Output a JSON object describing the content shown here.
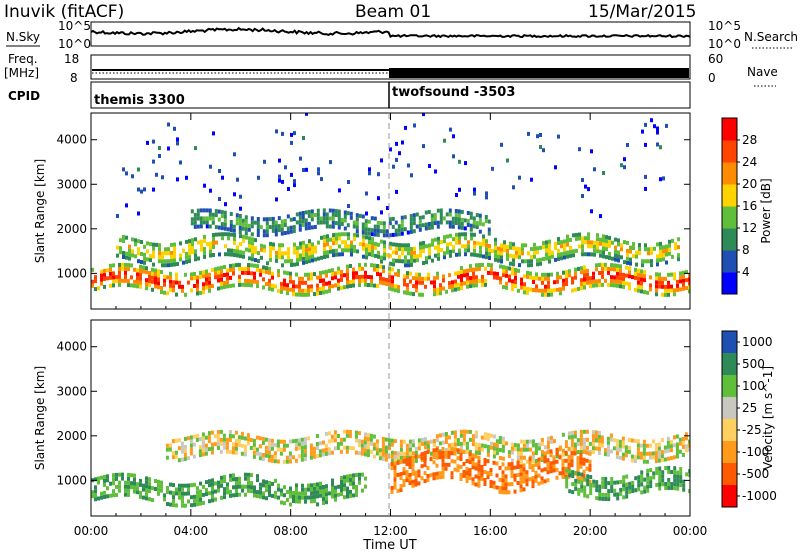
{
  "header": {
    "station": "Inuvik (fitACF)",
    "beam": "Beam 01",
    "date": "15/Mar/2015"
  },
  "panels": {
    "sky": {
      "left_label": "N.Sky",
      "right_label": "N.Search",
      "left_ticks": [
        "10^5",
        "10^0"
      ],
      "right_ticks": [
        "10^5",
        "10^0"
      ]
    },
    "freq": {
      "label_line1": "Freq.",
      "label_line2": "[MHz]",
      "left_ticks": [
        "18",
        "8"
      ],
      "right_ticks": [
        "60",
        "0"
      ],
      "right_label": "Nave"
    },
    "cpid": {
      "label": "CPID",
      "segments": [
        {
          "name": "themis 3300",
          "start_hour": 0
        },
        {
          "name": "twofsound -3503",
          "start_hour": 12
        }
      ]
    }
  },
  "colors": {
    "power": [
      "#0000ff",
      "#1f4fb3",
      "#2e8b57",
      "#5fbf3a",
      "#ffd300",
      "#ff8c00",
      "#ff4500",
      "#ff0000"
    ],
    "velocity": [
      "#ff0000",
      "#ff5a00",
      "#ff9a1a",
      "#ffd060",
      "#c8c8c0",
      "#5fbf3a",
      "#2e8b57",
      "#1f4fb3"
    ],
    "axis": "#000000",
    "noon_line": "#999999"
  },
  "chart_data": [
    {
      "type": "heatmap",
      "title": "Power",
      "ylabel": "Slant Range [km]",
      "ylim": [
        200,
        4600
      ],
      "yticks": [
        "1000",
        "2000",
        "3000",
        "4000"
      ],
      "xlim": [
        0,
        24
      ],
      "colorbar": {
        "label": "Power [dB]",
        "ticks": [
          "4",
          "8",
          "12",
          "16",
          "20",
          "24",
          "28"
        ],
        "range": [
          0,
          32
        ]
      },
      "bands": [
        {
          "name": "E-region echoes",
          "x_start": 0,
          "x_end": 24,
          "range_center": 900,
          "range_width": 450,
          "power": 28
        },
        {
          "name": "F-region band",
          "x_start": 1,
          "x_end": 23.5,
          "range_center": 1600,
          "range_width": 500,
          "power": 18
        },
        {
          "name": "upper scatter",
          "x_start": 4,
          "x_end": 16,
          "range_center": 2200,
          "range_width": 400,
          "power": 12
        },
        {
          "name": "far-range sparse",
          "x_start": 1,
          "x_end": 23,
          "range_center": 3500,
          "range_width": 1600,
          "power": 6
        }
      ]
    },
    {
      "type": "heatmap",
      "title": "Velocity",
      "ylabel": "Slant Range [km]",
      "ylim": [
        200,
        4600
      ],
      "yticks": [
        "1000",
        "2000",
        "3000",
        "4000"
      ],
      "xlim": [
        0,
        24
      ],
      "colorbar": {
        "label": "Velocity [m s^-1]",
        "ticks": [
          "1000",
          "500",
          "100",
          "25",
          "-25",
          "-100",
          "-500",
          "-1000"
        ]
      },
      "bands": [
        {
          "name": "low-range west-flow",
          "x_start": 0,
          "x_end": 11,
          "range_center": 850,
          "range_width": 500,
          "velocity": 100
        },
        {
          "name": "mid-range ground",
          "x_start": 3,
          "x_end": 24,
          "range_center": 1800,
          "range_width": 450,
          "velocity": 0
        },
        {
          "name": "afternoon flow",
          "x_start": 12,
          "x_end": 20,
          "range_center": 1300,
          "range_width": 700,
          "velocity": -100
        },
        {
          "name": "evening green",
          "x_start": 19,
          "x_end": 24,
          "range_center": 1000,
          "range_width": 500,
          "velocity": 100
        }
      ]
    }
  ],
  "time_axis": {
    "label": "Time UT",
    "ticks": [
      "00:00",
      "04:00",
      "08:00",
      "12:00",
      "16:00",
      "20:00",
      "00:00"
    ],
    "tick_hours": [
      0,
      4,
      8,
      12,
      16,
      20,
      24
    ]
  }
}
